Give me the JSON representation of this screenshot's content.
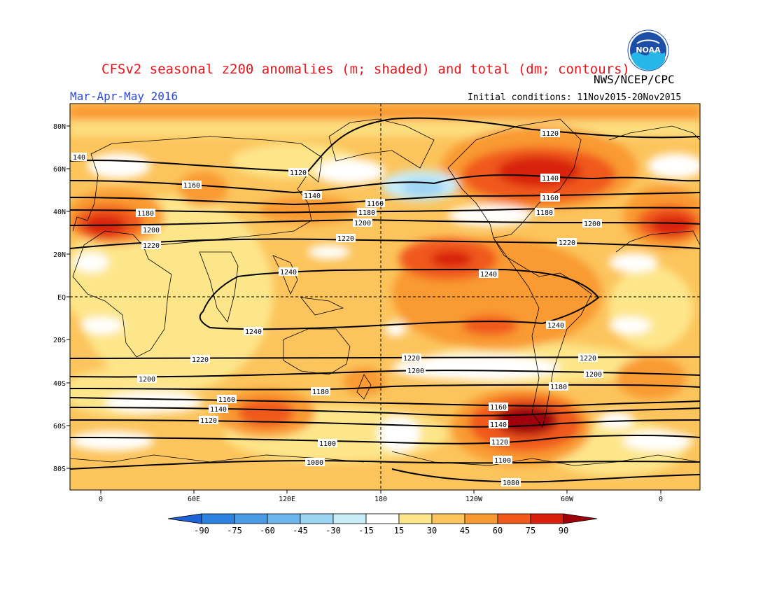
{
  "header": {
    "title": "CFSv2 seasonal z200 anomalies (m; shaded) and total (dm; contours)",
    "org": "NWS/NCEP/CPC",
    "season": "Mar-Apr-May 2016",
    "initial_conditions": "Initial conditions: 11Nov2015-20Nov2015"
  },
  "logo": {
    "icon": "noaa-logo-icon",
    "text": "NOAA"
  },
  "map": {
    "lat_labels": [
      "80N",
      "60N",
      "40N",
      "20N",
      "EQ",
      "20S",
      "40S",
      "60S",
      "80S"
    ],
    "lon_labels": [
      "0",
      "60E",
      "120E",
      "180",
      "120W",
      "60W",
      "0"
    ],
    "contour_labels": [
      "1120",
      "1140",
      "1160",
      "1180",
      "1200",
      "1220",
      "1240",
      "1220",
      "1200",
      "1180",
      "1160",
      "1140",
      "1120",
      "1100",
      "1080"
    ],
    "colors": {
      "land_outline": "#000000",
      "contour": "#000000"
    }
  },
  "colorbar": {
    "labels": [
      "-90",
      "-75",
      "-60",
      "-45",
      "-30",
      "-15",
      "15",
      "30",
      "45",
      "60",
      "75",
      "90"
    ],
    "colors": [
      "#1e64d8",
      "#2c82e0",
      "#4a9be6",
      "#6cb5ee",
      "#9cd4f4",
      "#c8ecf8",
      "#ffffff",
      "#fde68a",
      "#fcc45c",
      "#f99a30",
      "#f0591a",
      "#d8200c",
      "#a0000a"
    ]
  }
}
